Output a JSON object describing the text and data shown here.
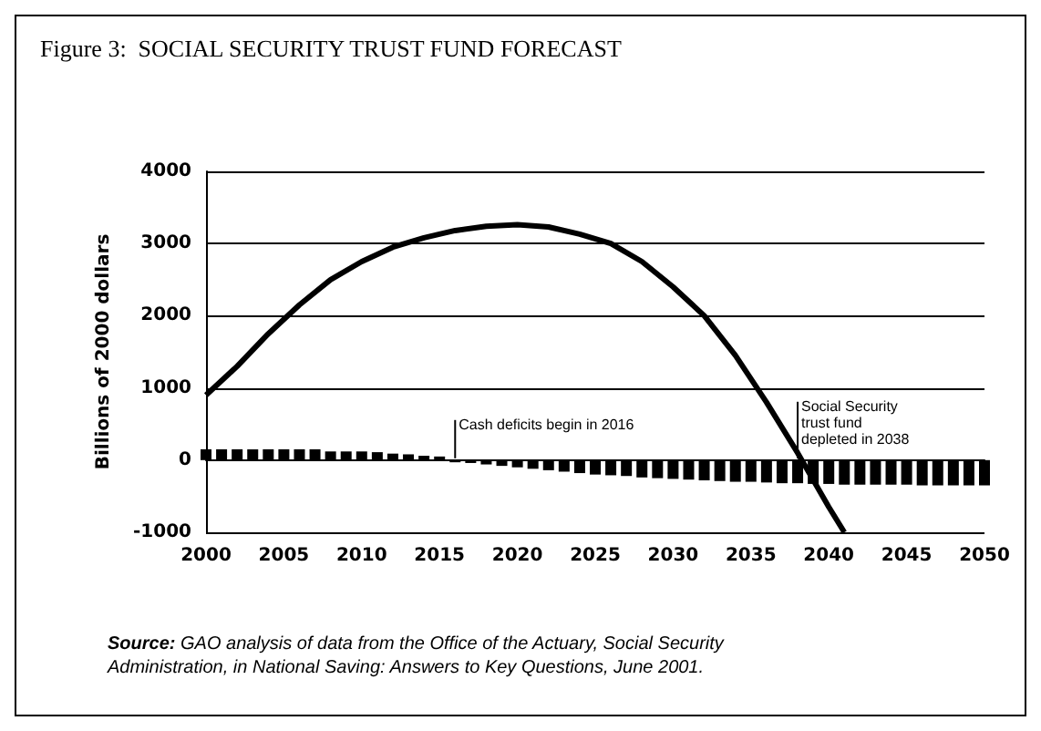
{
  "chart_data": {
    "type": "bar",
    "title": "Figure 3:  SOCIAL SECURITY TRUST FUND FORECAST",
    "ylabel": "Billions of 2000 dollars",
    "x": [
      2000,
      2001,
      2002,
      2003,
      2004,
      2005,
      2006,
      2007,
      2008,
      2009,
      2010,
      2011,
      2012,
      2013,
      2014,
      2015,
      2016,
      2017,
      2018,
      2019,
      2020,
      2021,
      2022,
      2023,
      2024,
      2025,
      2026,
      2027,
      2028,
      2029,
      2030,
      2031,
      2032,
      2033,
      2034,
      2035,
      2036,
      2037,
      2038,
      2039,
      2040,
      2041,
      2042,
      2043,
      2044,
      2045,
      2046,
      2047,
      2048,
      2049,
      2050
    ],
    "series": [
      {
        "color": "#000000",
        "values": [
          150,
          150,
          150,
          150,
          150,
          150,
          150,
          150,
          120,
          120,
          120,
          110,
          90,
          80,
          60,
          50,
          -30,
          -40,
          -60,
          -80,
          -100,
          -120,
          -140,
          -160,
          -180,
          -200,
          -210,
          -220,
          -240,
          -250,
          -260,
          -270,
          -280,
          -290,
          -300,
          -300,
          -310,
          -320,
          -320,
          -330,
          -330,
          -340,
          -340,
          -340,
          -340,
          -340,
          -350,
          -350,
          -350,
          -350,
          -350
        ]
      },
      {
        "type": "line",
        "color": "#000000",
        "x": [
          2000,
          2002,
          2004,
          2006,
          2008,
          2010,
          2012,
          2014,
          2016,
          2018,
          2020,
          2022,
          2024,
          2026,
          2028,
          2030,
          2032,
          2034,
          2036,
          2038,
          2040,
          2041
        ],
        "values": [
          900,
          1300,
          1750,
          2150,
          2500,
          2750,
          2950,
          3080,
          3180,
          3240,
          3260,
          3230,
          3130,
          3000,
          2750,
          2400,
          2000,
          1450,
          800,
          100,
          -650,
          -1000
        ]
      }
    ],
    "xlim": [
      2000,
      2050
    ],
    "xticks": [
      2000,
      2005,
      2010,
      2015,
      2020,
      2025,
      2030,
      2035,
      2040,
      2045,
      2050
    ],
    "ylim": [
      -1000,
      4000
    ],
    "yticks": [
      -1000,
      0,
      1000,
      2000,
      3000,
      4000
    ],
    "grid": "y",
    "annotations": [
      {
        "text": "Cash deficits begin in 2016",
        "x": 2016,
        "y": 0
      },
      {
        "text": "Social Security trust fund depleted in 2038",
        "x": 2038,
        "y": 0
      },
      "Source: GAO analysis of data from the Office of the Actuary, Social Security Administration, in National Saving: Answers to Key Questions, June 2001."
    ]
  }
}
